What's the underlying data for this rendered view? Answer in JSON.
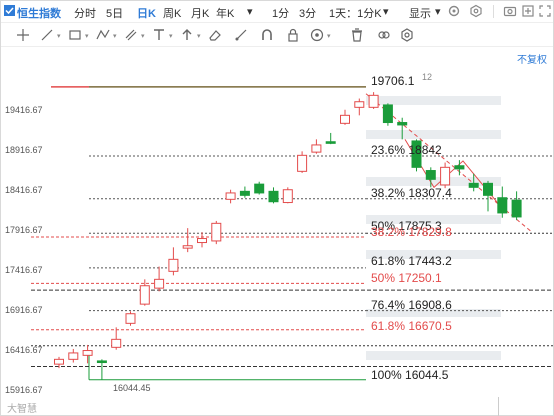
{
  "toolbar": {
    "index_name": "恒生指数",
    "periods": [
      "分时",
      "5日",
      "日K",
      "周K",
      "月K",
      "年K",
      "1分",
      "3分"
    ],
    "active_period": "日K",
    "interval_select": "1天：1分K",
    "display_label": "显示",
    "right_icons": [
      "gear-icon",
      "settings-icon",
      "camera-icon",
      "expand-icon",
      "fullscreen-icon"
    ]
  },
  "drawing_tools": [
    "crosshair-icon",
    "line-tool-icon",
    "rectangle-tool-icon",
    "pattern-tool-icon",
    "parallel-tool-icon",
    "text-tool-icon",
    "arrow-tool-icon",
    "eraser-tool-icon",
    "ruler-tool-icon",
    "magnet-icon",
    "lock-icon",
    "eye-icon",
    "trash-icon",
    "link-icon",
    "settings-icon"
  ],
  "restore_label": "不复权",
  "y_axis_labels": [
    "19416.67",
    "18916.67",
    "18416.67",
    "17916.67",
    "17416.67",
    "16916.67",
    "16416.67",
    "15916.67"
  ],
  "fib_levels": [
    {
      "text": "19706.1"
    },
    {
      "text": "23.6% 18842"
    },
    {
      "text": "38.2% 18307.4"
    },
    {
      "text": "50% 17875.3"
    },
    {
      "text": "61.8% 17443.2"
    },
    {
      "text": "76.4% 16908.6"
    },
    {
      "text": "100% 16044.5"
    }
  ],
  "fib_red_levels": [
    {
      "text": "38.2% 17829.8"
    },
    {
      "text": "50% 17250.1"
    },
    {
      "text": "61.8% 16670.5"
    }
  ],
  "high_marker": "12",
  "low_price_label": "16044.45",
  "watermark": "大智慧",
  "colors": {
    "up": "#e34b4b",
    "down": "#1a9c3a",
    "accent": "#2f7bd6"
  },
  "chart_data": {
    "type": "candlestick",
    "y_range": [
      15916.67,
      19916.67
    ],
    "fib_high": 19706.1,
    "fib_low": 16044.5,
    "candles": [
      {
        "o": 16240,
        "c": 16300,
        "h": 16330,
        "l": 16190
      },
      {
        "o": 16300,
        "c": 16380,
        "h": 16430,
        "l": 16260
      },
      {
        "o": 16350,
        "c": 16410,
        "h": 16480,
        "l": 16250
      },
      {
        "o": 16280,
        "c": 16260,
        "h": 16300,
        "l": 16044
      },
      {
        "o": 16450,
        "c": 16550,
        "h": 16700,
        "l": 16420
      },
      {
        "o": 16750,
        "c": 16870,
        "h": 16900,
        "l": 16720
      },
      {
        "o": 16990,
        "c": 17220,
        "h": 17300,
        "l": 16970
      },
      {
        "o": 17190,
        "c": 17300,
        "h": 17460,
        "l": 17150
      },
      {
        "o": 17400,
        "c": 17550,
        "h": 17700,
        "l": 17350
      },
      {
        "o": 17690,
        "c": 17720,
        "h": 17940,
        "l": 17640
      },
      {
        "o": 17760,
        "c": 17810,
        "h": 17890,
        "l": 17700
      },
      {
        "o": 17780,
        "c": 18000,
        "h": 18030,
        "l": 17740
      },
      {
        "o": 18300,
        "c": 18380,
        "h": 18420,
        "l": 18250
      },
      {
        "o": 18400,
        "c": 18350,
        "h": 18460,
        "l": 18320
      },
      {
        "o": 18490,
        "c": 18380,
        "h": 18520,
        "l": 18360
      },
      {
        "o": 18400,
        "c": 18270,
        "h": 18450,
        "l": 18250
      },
      {
        "o": 18260,
        "c": 18420,
        "h": 18450,
        "l": 18250
      },
      {
        "o": 18650,
        "c": 18850,
        "h": 18900,
        "l": 18630
      },
      {
        "o": 18890,
        "c": 18980,
        "h": 19050,
        "l": 18870
      },
      {
        "o": 19020,
        "c": 19000,
        "h": 19130,
        "l": 18990
      },
      {
        "o": 19250,
        "c": 19350,
        "h": 19420,
        "l": 19230
      },
      {
        "o": 19450,
        "c": 19520,
        "h": 19560,
        "l": 19350
      },
      {
        "o": 19450,
        "c": 19600,
        "h": 19640,
        "l": 19430
      },
      {
        "o": 19480,
        "c": 19260,
        "h": 19500,
        "l": 19220
      },
      {
        "o": 19260,
        "c": 19230,
        "h": 19320,
        "l": 19050
      },
      {
        "o": 19030,
        "c": 18700,
        "h": 19050,
        "l": 18650
      },
      {
        "o": 18660,
        "c": 18550,
        "h": 18700,
        "l": 18450
      },
      {
        "o": 18480,
        "c": 18700,
        "h": 18760,
        "l": 18440
      },
      {
        "o": 18720,
        "c": 18680,
        "h": 18790,
        "l": 18600
      },
      {
        "o": 18500,
        "c": 18450,
        "h": 18620,
        "l": 18400
      },
      {
        "o": 18500,
        "c": 18350,
        "h": 18530,
        "l": 18150
      },
      {
        "o": 18320,
        "c": 18130,
        "h": 18460,
        "l": 18070
      },
      {
        "o": 18290,
        "c": 18080,
        "h": 18400,
        "l": 18040
      }
    ]
  }
}
